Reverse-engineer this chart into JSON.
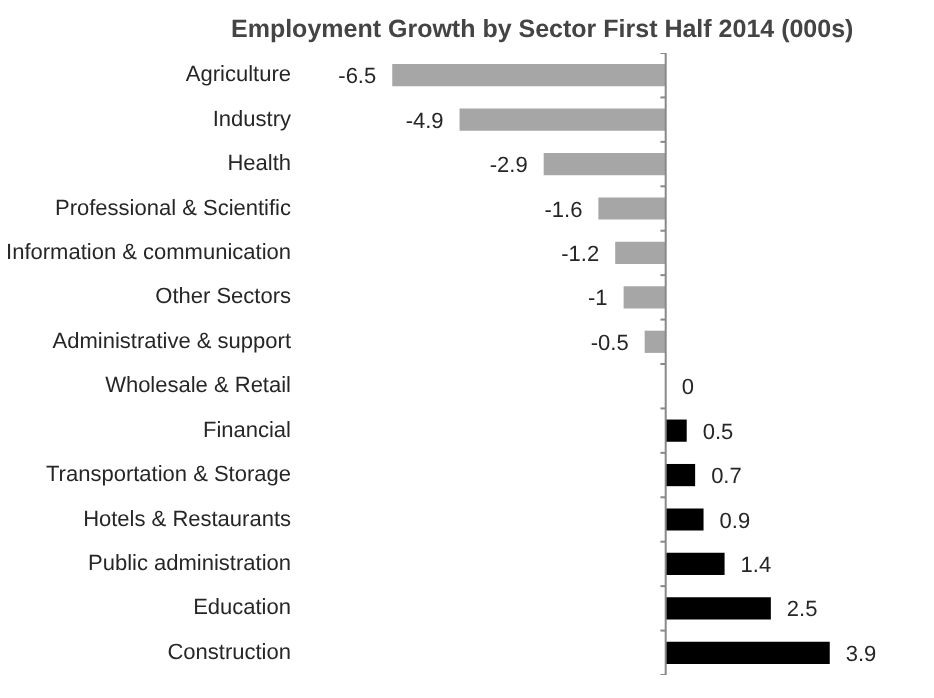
{
  "chart_data": {
    "type": "bar",
    "orientation": "horizontal",
    "title": "Employment Growth by Sector First Half 2014 (000s)",
    "categories": [
      "Agriculture",
      "Industry",
      "Health",
      "Professional & Scientific",
      "Information & communication",
      "Other Sectors",
      "Administrative & support",
      "Wholesale & Retail",
      "Financial",
      "Transportation & Storage",
      "Hotels & Restaurants",
      "Public administration",
      "Education",
      "Construction"
    ],
    "values": [
      -6.5,
      -4.9,
      -2.9,
      -1.6,
      -1.2,
      -1,
      -0.5,
      0,
      0.5,
      0.7,
      0.9,
      1.4,
      2.5,
      3.9
    ],
    "colors": [
      "#a6a6a6",
      "#a6a6a6",
      "#a6a6a6",
      "#a6a6a6",
      "#a6a6a6",
      "#a6a6a6",
      "#a6a6a6",
      "#000000",
      "#000000",
      "#000000",
      "#000000",
      "#000000",
      "#000000",
      "#000000"
    ],
    "data_labels": true,
    "grid": false
  }
}
